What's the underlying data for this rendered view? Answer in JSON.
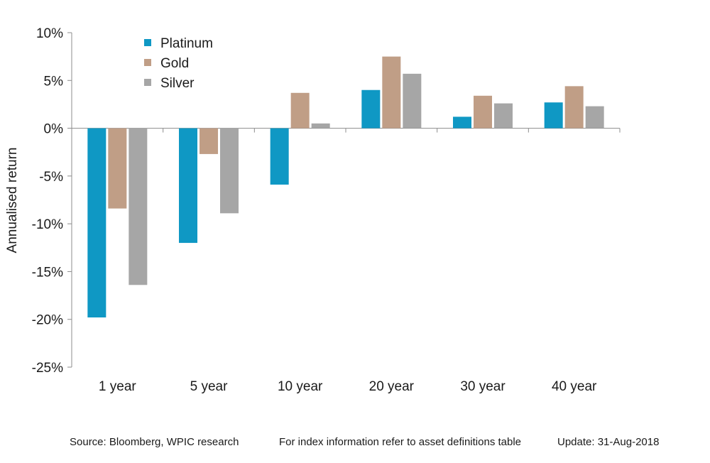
{
  "chart_data": {
    "type": "bar",
    "categories": [
      "1 year",
      "5 year",
      "10 year",
      "20 year",
      "30 year",
      "40 year"
    ],
    "series": [
      {
        "name": "Platinum",
        "color": "#0f98c4",
        "values": [
          -19.8,
          -12.0,
          -5.9,
          4.0,
          1.2,
          2.7
        ]
      },
      {
        "name": "Gold",
        "color": "#c09e86",
        "values": [
          -8.4,
          -2.7,
          3.7,
          7.5,
          3.4,
          4.4
        ]
      },
      {
        "name": "Silver",
        "color": "#a6a6a6",
        "values": [
          -16.4,
          -8.9,
          0.5,
          5.7,
          2.6,
          2.3
        ]
      }
    ],
    "ylabel": "Annualised return",
    "ylim": [
      -25,
      10
    ],
    "yticks": [
      10,
      5,
      0,
      -5,
      -10,
      -15,
      -20,
      -25
    ],
    "ytick_labels": [
      "10%",
      "5%",
      "0%",
      "-5%",
      "-10%",
      "-15%",
      "-20%",
      "-25%"
    ],
    "legend_position": "top-left",
    "grid": false
  },
  "footer": {
    "source": "Source: Bloomberg, WPIC research",
    "note": "For index information refer to asset definitions table",
    "update": "Update: 31-Aug-2018"
  }
}
